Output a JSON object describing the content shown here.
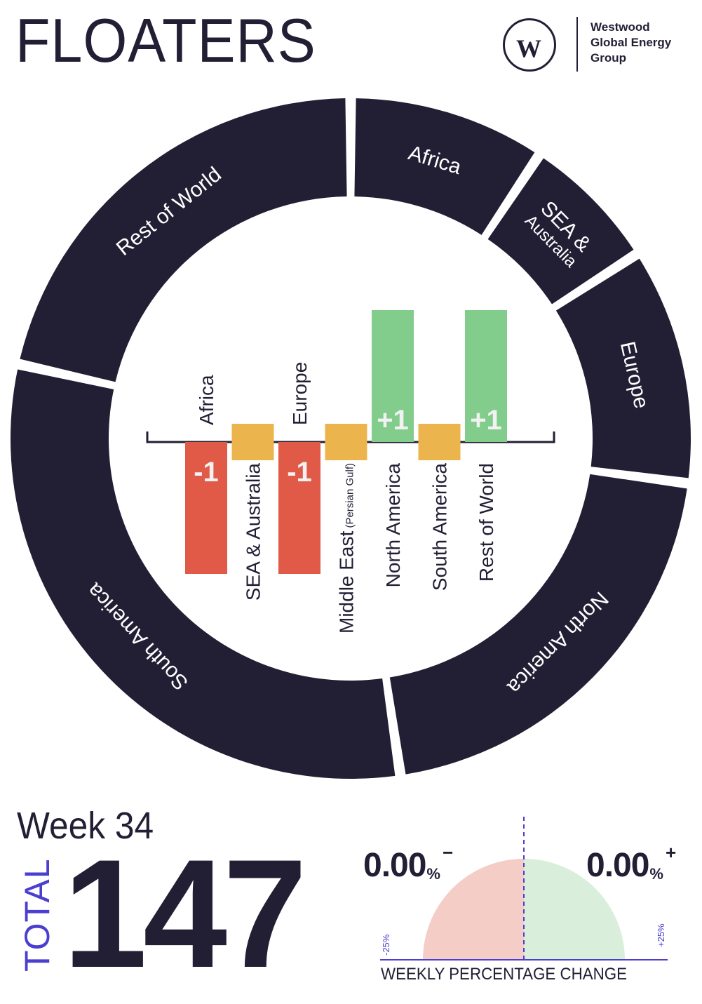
{
  "header": {
    "title": "FLOATERS"
  },
  "logo": {
    "line1": "Westwood",
    "line2": "Global Energy",
    "line3": "Group"
  },
  "chart_data": [
    {
      "type": "pie",
      "variant": "donut",
      "slices": [
        {
          "label": "Africa",
          "value": 10
        },
        {
          "label": "SEA &",
          "label2": "Australia",
          "value": 7
        },
        {
          "label": "Europe",
          "value": 12
        },
        {
          "label": "North America",
          "value": 22
        },
        {
          "label": "South America",
          "value": 33
        },
        {
          "label": "Rest of World",
          "value": 23
        }
      ],
      "colors": {
        "segment": "#221f35",
        "label": "#ffffff"
      }
    },
    {
      "type": "bar",
      "categories": [
        "Africa",
        "SEA & Australia",
        "Europe",
        "Middle East",
        "North America",
        "South America",
        "Rest of World"
      ],
      "category_notes": [
        "",
        "",
        "",
        "(Persian Gulf)",
        "",
        "",
        ""
      ],
      "values": [
        -1,
        0,
        -1,
        0,
        1,
        0,
        1
      ],
      "value_labels": [
        "-1",
        "",
        "-1",
        "",
        "+1",
        "",
        "+1"
      ],
      "colors": {
        "negative": "#e05a47",
        "neutral": "#ecb44c",
        "positive": "#82cd8c"
      }
    }
  ],
  "summary": {
    "week": "Week 34",
    "total_label": "TOTAL",
    "total_value": "147",
    "decrease": "0.00",
    "increase": "0.00",
    "pct_symbol": "%",
    "minus_sign": "−",
    "plus_sign": "+",
    "gauge_min": "-25%",
    "gauge_max": "+25%",
    "gauge_caption": "WEEKLY PERCENTAGE CHANGE",
    "gauge_colors": {
      "negative": "#f4cdc6",
      "positive": "#d9efdc",
      "axis": "#4b3fd0"
    }
  }
}
